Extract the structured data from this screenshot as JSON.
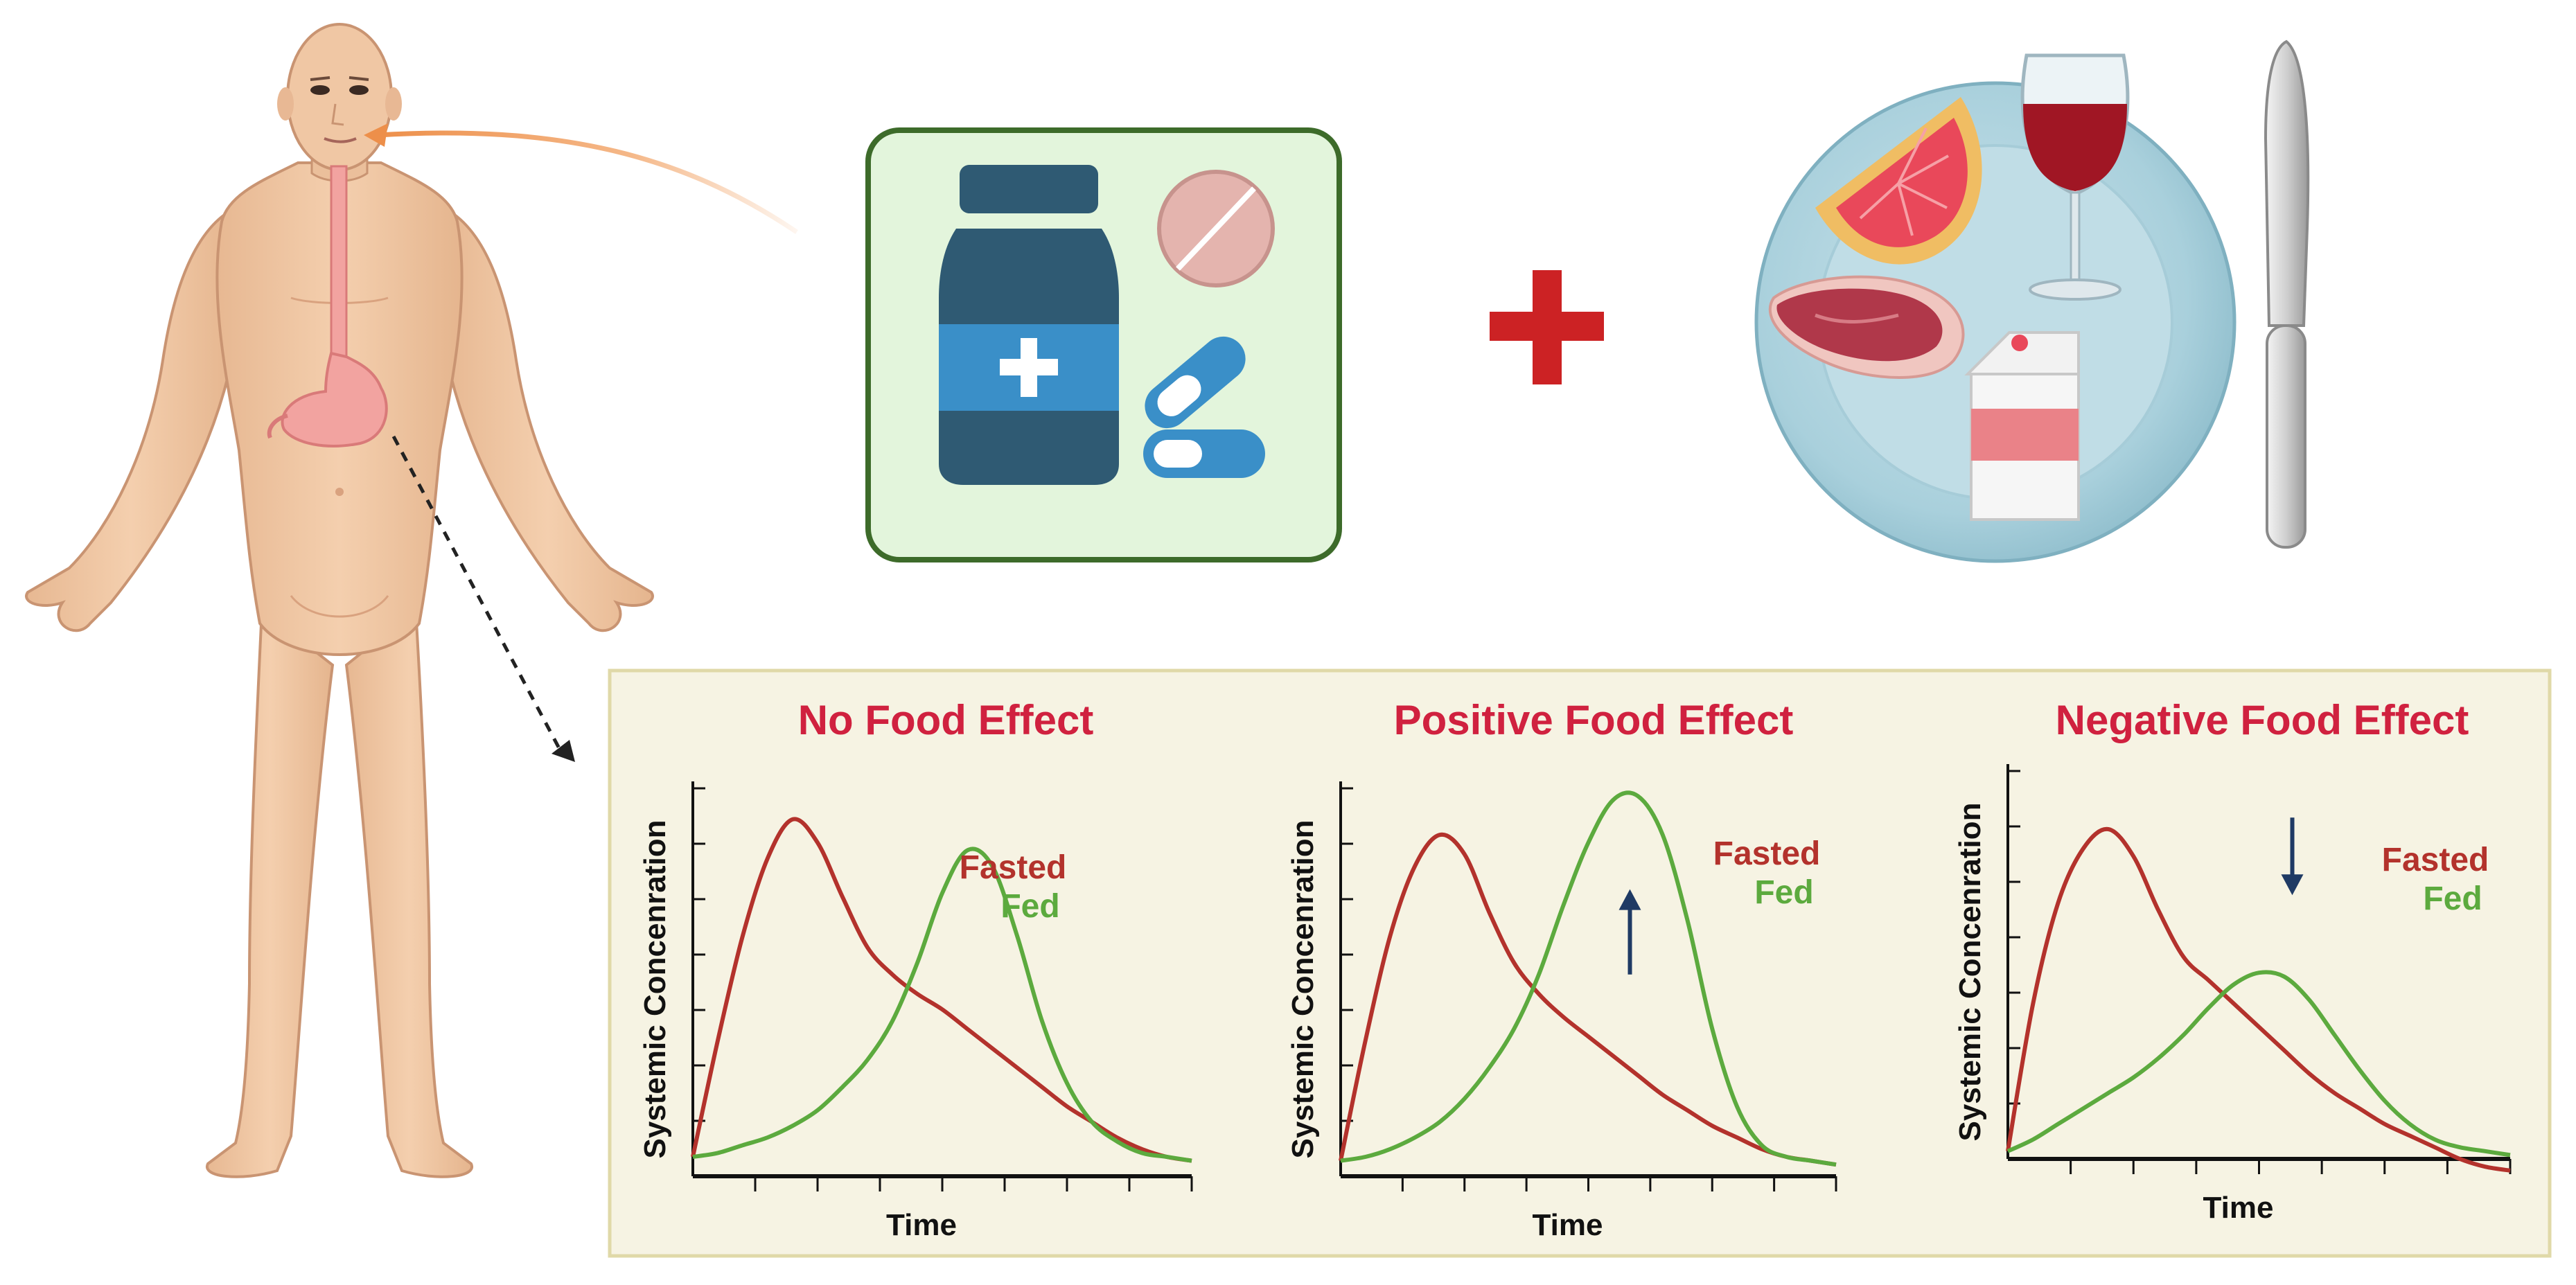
{
  "colors": {
    "fasted": "#b3322c",
    "fed": "#5caa3e",
    "title": "#d0213f",
    "arrow": "#1f3a64",
    "plus": "#cc2224",
    "panel_bg": "#f6f3e3",
    "panel_border": "#e0d9a8",
    "pill_box_bg": "#e3f5dc",
    "pill_box_border": "#3d6b2a"
  },
  "icons": {
    "body": "human-body-icon",
    "stomach": "stomach-icon",
    "bottle": "medicine-bottle-icon",
    "tablet": "tablet-icon",
    "capsule": "capsule-icon",
    "plus": "plus-icon",
    "plate": "food-plate-icon",
    "grapefruit": "grapefruit-icon",
    "wine": "wine-glass-icon",
    "steak": "steak-icon",
    "milk": "milk-carton-icon",
    "knife": "knife-icon"
  },
  "chart_data": [
    {
      "type": "line",
      "title": "No Food Effect",
      "xlabel": "Time",
      "ylabel": "Systemic Concenration",
      "x": [
        0,
        1,
        2,
        3,
        4,
        5,
        6,
        7,
        8,
        9,
        10,
        11,
        12,
        13,
        14,
        15,
        16,
        17,
        18,
        19,
        20
      ],
      "series": [
        {
          "name": "Fasted",
          "values": [
            0.05,
            0.35,
            0.62,
            0.82,
            0.92,
            0.86,
            0.72,
            0.59,
            0.52,
            0.47,
            0.43,
            0.38,
            0.33,
            0.28,
            0.23,
            0.18,
            0.14,
            0.1,
            0.07,
            0.05,
            0.04
          ]
        },
        {
          "name": "Fed",
          "values": [
            0.05,
            0.06,
            0.08,
            0.1,
            0.13,
            0.17,
            0.23,
            0.3,
            0.4,
            0.55,
            0.73,
            0.84,
            0.8,
            0.62,
            0.4,
            0.24,
            0.14,
            0.09,
            0.06,
            0.05,
            0.04
          ]
        }
      ],
      "annotation": "none",
      "ylim": [
        0,
        1
      ],
      "xlim": [
        0,
        20
      ]
    },
    {
      "type": "line",
      "title": "Positive Food Effect",
      "xlabel": "Time",
      "ylabel": "Systemic Concenration",
      "x": [
        0,
        1,
        2,
        3,
        4,
        5,
        6,
        7,
        8,
        9,
        10,
        11,
        12,
        13,
        14,
        15,
        16,
        17,
        18,
        19,
        20
      ],
      "series": [
        {
          "name": "Fasted",
          "values": [
            0.04,
            0.35,
            0.62,
            0.8,
            0.88,
            0.83,
            0.68,
            0.55,
            0.47,
            0.41,
            0.36,
            0.31,
            0.26,
            0.21,
            0.17,
            0.13,
            0.1,
            0.07,
            0.05,
            0.04,
            0.03
          ]
        },
        {
          "name": "Fed",
          "values": [
            0.04,
            0.05,
            0.07,
            0.1,
            0.14,
            0.2,
            0.28,
            0.38,
            0.52,
            0.7,
            0.86,
            0.97,
            0.98,
            0.88,
            0.66,
            0.38,
            0.18,
            0.08,
            0.05,
            0.04,
            0.03
          ]
        }
      ],
      "annotation": "up",
      "ylim": [
        0,
        1
      ],
      "xlim": [
        0,
        20
      ]
    },
    {
      "type": "line",
      "title": "Negative Food Effect",
      "xlabel": "Time",
      "ylabel": "Systemic Concenration",
      "x": [
        0,
        1,
        2,
        3,
        4,
        5,
        6,
        7,
        8,
        9,
        10,
        11,
        12,
        13,
        14,
        15,
        16,
        17,
        18,
        19,
        20
      ],
      "series": [
        {
          "name": "Fasted",
          "values": [
            0.02,
            0.4,
            0.66,
            0.8,
            0.85,
            0.78,
            0.64,
            0.52,
            0.46,
            0.4,
            0.34,
            0.28,
            0.22,
            0.17,
            0.13,
            0.09,
            0.06,
            0.03,
            0.0,
            -0.02,
            -0.03
          ]
        },
        {
          "name": "Fed",
          "values": [
            0.02,
            0.05,
            0.09,
            0.13,
            0.17,
            0.21,
            0.26,
            0.32,
            0.39,
            0.45,
            0.48,
            0.47,
            0.41,
            0.32,
            0.23,
            0.15,
            0.09,
            0.05,
            0.03,
            0.02,
            0.01
          ]
        }
      ],
      "annotation": "down",
      "ylim": [
        0,
        1
      ],
      "xlim": [
        0,
        20
      ]
    }
  ]
}
